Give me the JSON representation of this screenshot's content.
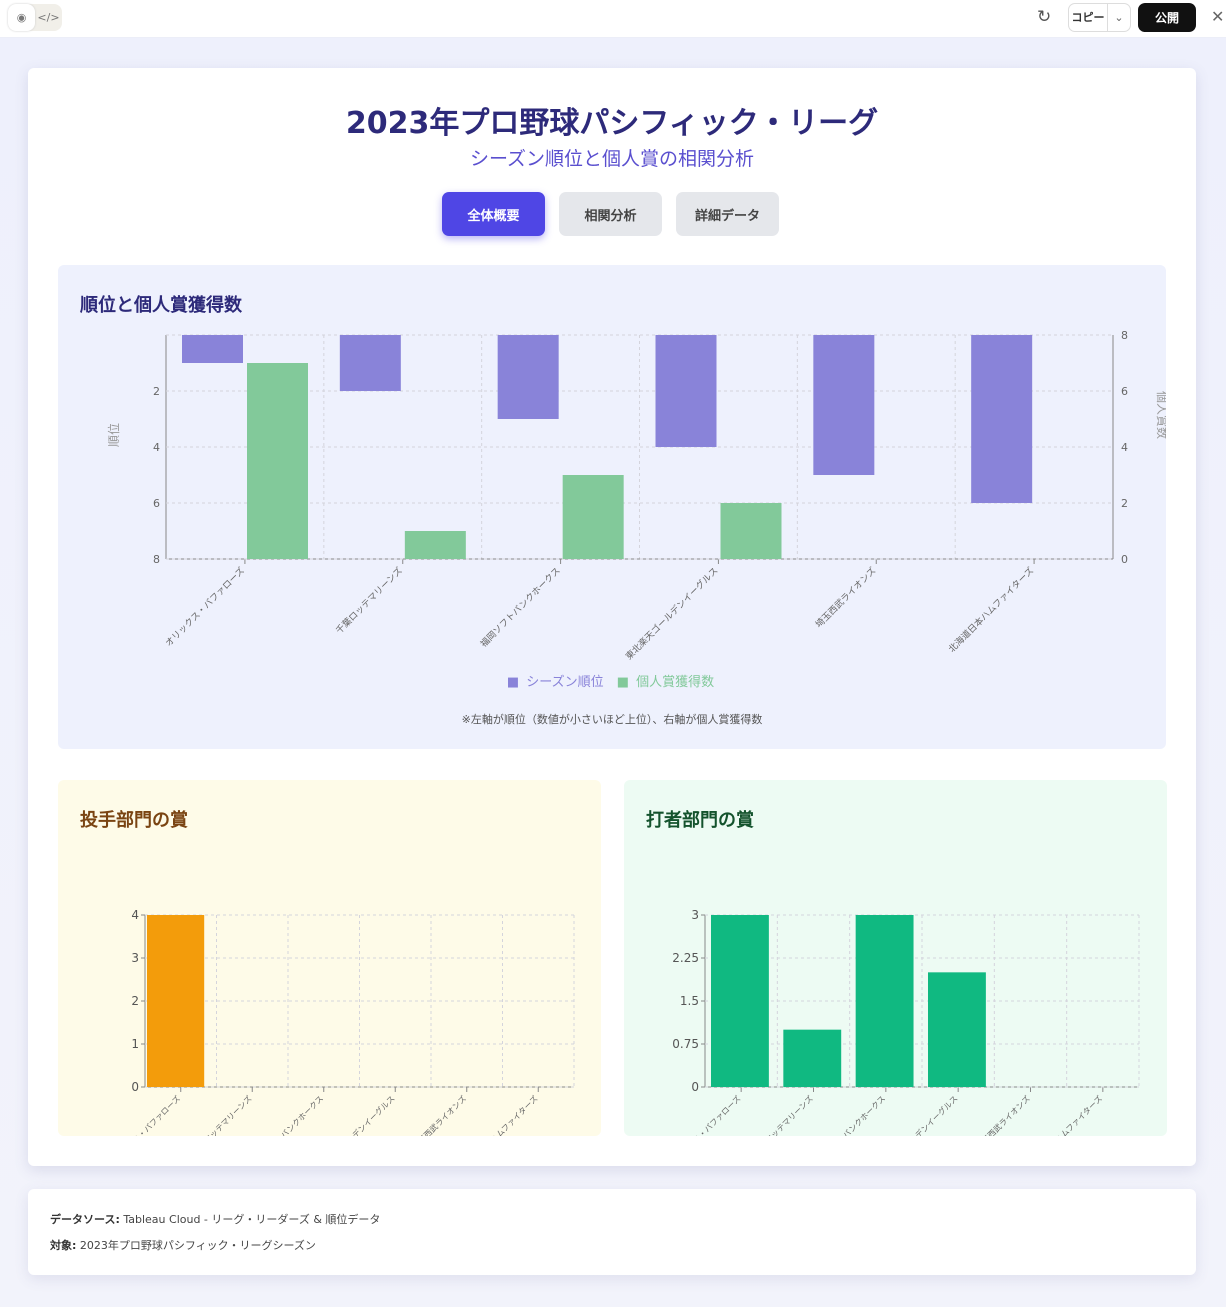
{
  "topbar": {
    "preview_icon": "eye-icon",
    "code_icon": "code-icon",
    "reload_icon": "refresh-icon",
    "copy_label": "コピー",
    "publish_label": "公開",
    "close_icon": "close-icon"
  },
  "header": {
    "title": "2023年プロ野球パシフィック・リーグ",
    "subtitle": "シーズン順位と個人賞の相関分析"
  },
  "tabs": [
    {
      "label": "全体概要",
      "active": true
    },
    {
      "label": "相関分析",
      "active": false
    },
    {
      "label": "詳細データ",
      "active": false
    }
  ],
  "colors": {
    "rank": "#8983d9",
    "awards": "#82c99a",
    "pitching": "#f39c0b",
    "batting": "#10b981"
  },
  "chart_data": [
    {
      "type": "bar",
      "title": "順位と個人賞獲得数",
      "categories": [
        "オリックス・バファローズ",
        "千葉ロッテマリーンズ",
        "福岡ソフトバンクホークス",
        "東北楽天ゴールデンイーグルス",
        "埼玉西武ライオンズ",
        "北海道日本ハムファイターズ"
      ],
      "series": [
        {
          "name": "シーズン順位",
          "values": [
            1,
            2,
            3,
            4,
            5,
            6
          ],
          "axis": "left"
        },
        {
          "name": "個人賞獲得数",
          "values": [
            7,
            1,
            3,
            2,
            0,
            0
          ],
          "axis": "right"
        }
      ],
      "ylabel": "順位",
      "y2label": "個人賞数",
      "ylim": [
        0,
        8
      ],
      "y_reversed": true,
      "y2lim": [
        0,
        8
      ],
      "yticks": [
        "2",
        "4",
        "6",
        "8"
      ],
      "y2ticks": [
        "0",
        "2",
        "4",
        "6",
        "8"
      ],
      "grid": true,
      "legend": "bottom",
      "note": "※左軸が順位（数値が小さいほど上位）、右軸が個人賞獲得数"
    },
    {
      "type": "bar",
      "title": "投手部門の賞",
      "categories": [
        "オリックス・バファローズ",
        "千葉ロッテマリーンズ",
        "福岡ソフトバンクホークス",
        "東北楽天ゴールデンイーグルス",
        "埼玉西武ライオンズ",
        "北海道日本ハムファイターズ"
      ],
      "values": [
        4,
        0,
        0,
        0,
        0,
        0
      ],
      "ylim": [
        0,
        4
      ],
      "yticks": [
        "0",
        "1",
        "2",
        "3",
        "4"
      ],
      "grid": true
    },
    {
      "type": "bar",
      "title": "打者部門の賞",
      "categories": [
        "オリックス・バファローズ",
        "千葉ロッテマリーンズ",
        "福岡ソフトバンクホークス",
        "東北楽天ゴールデンイーグルス",
        "埼玉西武ライオンズ",
        "北海道日本ハムファイターズ"
      ],
      "values": [
        3,
        1,
        3,
        2,
        0,
        0
      ],
      "ylim": [
        0,
        3
      ],
      "yticks": [
        "0",
        "0.75",
        "1.5",
        "2.25",
        "3"
      ],
      "grid": true
    }
  ],
  "footer": {
    "source_label": "データソース:",
    "source": "Tableau Cloud - リーグ・リーダーズ & 順位データ",
    "target_label": "対象:",
    "target": "2023年プロ野球パシフィック・リーグシーズン"
  }
}
